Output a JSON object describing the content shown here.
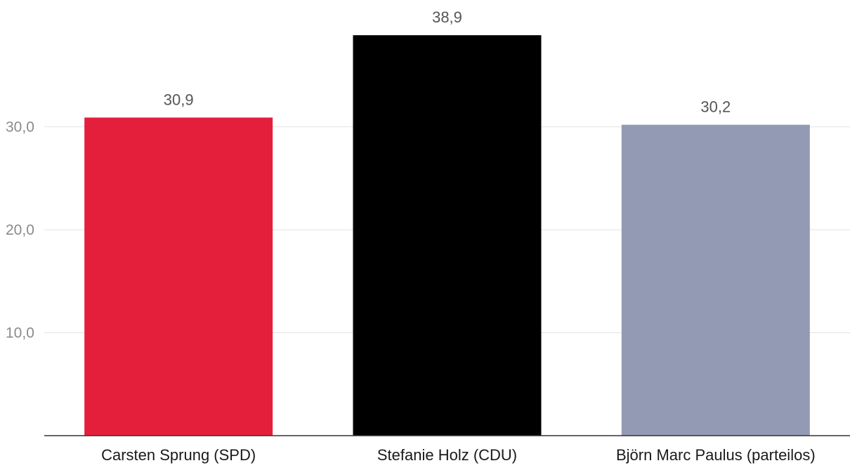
{
  "chart_data": {
    "type": "bar",
    "title": "",
    "xlabel": "",
    "ylabel": "",
    "categories": [
      "Carsten Sprung (SPD)",
      "Stefanie Holz (CDU)",
      "Björn Marc Paulus (parteilos)"
    ],
    "values": [
      30.9,
      38.9,
      30.2
    ],
    "value_labels": [
      "30,9",
      "38,9",
      "30,2"
    ],
    "colors": [
      "#e31f3c",
      "#000000",
      "#939ab3"
    ],
    "ylim": [
      0,
      40.7
    ],
    "yticks": [
      10,
      20,
      30
    ],
    "ytick_labels": [
      "10,0",
      "20,0",
      "30,0"
    ],
    "grid": true,
    "legend": "none"
  }
}
